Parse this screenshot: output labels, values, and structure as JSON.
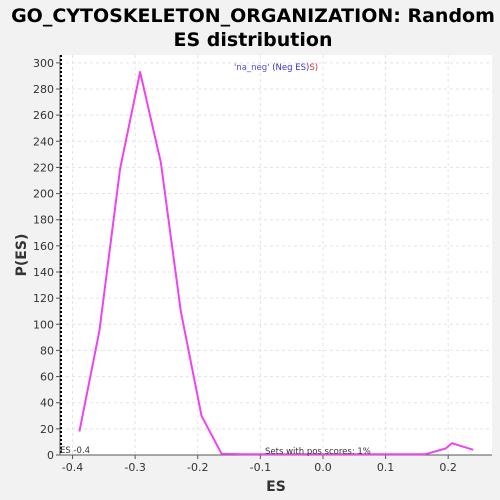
{
  "chart_data": {
    "type": "line",
    "title_line1": "GO_CYTOSKELETON_ORGANIZATION: Random",
    "title_line2": "ES distribution",
    "xlabel": "ES",
    "ylabel": "P(ES)",
    "xlim": [
      -0.42,
      0.27
    ],
    "ylim": [
      0,
      306
    ],
    "xticks": [
      -0.4,
      -0.3,
      -0.2,
      -0.1,
      0.0,
      0.1,
      0.2
    ],
    "xtick_labels": [
      "-0.4",
      "-0.3",
      "-0.2",
      "-0.1",
      "0.0",
      "0.1",
      "0.2"
    ],
    "yticks": [
      0,
      20,
      40,
      60,
      80,
      100,
      120,
      140,
      160,
      180,
      200,
      220,
      240,
      260,
      280,
      300
    ],
    "ytick_labels": [
      "0",
      "20",
      "40",
      "60",
      "80",
      "100",
      "120",
      "140",
      "160",
      "180",
      "200",
      "220",
      "240",
      "260",
      "280",
      "300"
    ],
    "grid": true,
    "legend": {
      "text_part1": "'na_neg'",
      "text_part2": " (Neg ES)",
      "text_part3": "S)",
      "color_part1": "#4d4dd8",
      "color_part2": "#3333cc",
      "color_part3": "#e03030"
    },
    "annotations": {
      "es_marker": "ES -0.4",
      "pos_scores": "Sets with pos scores: 1%"
    },
    "series": [
      {
        "color": "#ee44ee",
        "x": [
          -0.389,
          -0.357,
          -0.324,
          -0.292,
          -0.259,
          -0.227,
          -0.194,
          -0.162,
          -0.129,
          -0.097,
          -0.064,
          -0.032,
          0.001,
          0.033,
          0.066,
          0.098,
          0.131,
          0.163,
          0.196,
          0.206,
          0.24
        ],
        "y": [
          18,
          95,
          219,
          293,
          224,
          110,
          30,
          1,
          0.5,
          0.5,
          0.5,
          0.5,
          0.5,
          0.5,
          0.5,
          0.5,
          0.5,
          0.5,
          5,
          9,
          4
        ]
      }
    ]
  }
}
